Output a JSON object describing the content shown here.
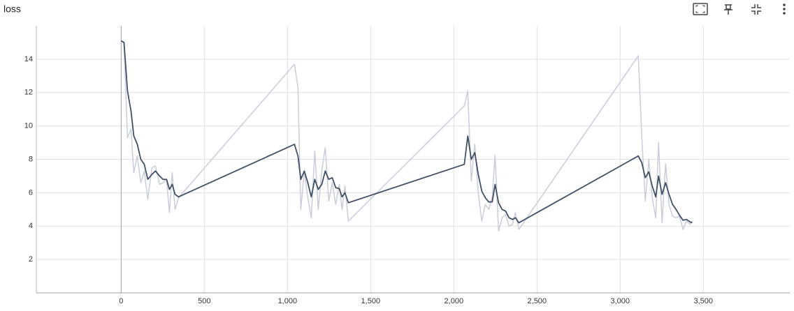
{
  "chart_data": {
    "type": "line",
    "title": "loss",
    "x": [
      0,
      17,
      38,
      59,
      76,
      97,
      118,
      139,
      160,
      185,
      206,
      231,
      252,
      273,
      290,
      307,
      324,
      345,
      1042,
      1063,
      1080,
      1101,
      1122,
      1143,
      1164,
      1185,
      1206,
      1227,
      1248,
      1269,
      1290,
      1311,
      1328,
      1345,
      1366,
      2063,
      2084,
      2105,
      2126,
      2147,
      2168,
      2189,
      2210,
      2231,
      2248,
      2269,
      2290,
      2311,
      2332,
      2353,
      2370,
      2391,
      3109,
      3130,
      3151,
      3172,
      3193,
      3214,
      3231,
      3252,
      3273,
      3294,
      3315,
      3336,
      3357,
      3378,
      3399,
      3420,
      3433
    ],
    "series": [
      {
        "color": "#c9cdd8",
        "values": [
          15.1,
          15.0,
          9.3,
          9.8,
          7.2,
          8.2,
          6.6,
          7.3,
          5.6,
          7.5,
          7.6,
          6.5,
          6.6,
          6.8,
          4.8,
          7.2,
          5.0,
          5.7,
          13.7,
          12.3,
          5.0,
          7.3,
          5.7,
          4.5,
          8.5,
          5.0,
          7.3,
          8.7,
          5.5,
          6.6,
          5.3,
          6.5,
          5.0,
          6.4,
          4.3,
          11.2,
          12.1,
          6.7,
          8.9,
          6.0,
          4.3,
          5.3,
          5.0,
          5.75,
          8.25,
          3.7,
          4.5,
          4.7,
          4.0,
          4.1,
          4.8,
          3.8,
          14.2,
          9.4,
          5.5,
          8.0,
          5.7,
          4.5,
          9.0,
          4.2,
          7.75,
          5.25,
          4.6,
          4.5,
          4.6,
          3.8,
          4.3,
          4.1,
          4.3
        ]
      },
      {
        "color": "#425066",
        "values": [
          15.1,
          15.0,
          12.1,
          10.9,
          9.4,
          8.9,
          8.0,
          7.7,
          6.8,
          7.1,
          7.3,
          7.0,
          6.8,
          6.8,
          6.2,
          6.5,
          5.9,
          5.75,
          8.9,
          8.2,
          6.8,
          7.3,
          6.6,
          5.75,
          6.8,
          6.2,
          6.5,
          7.3,
          6.8,
          6.9,
          6.3,
          6.25,
          5.75,
          6.0,
          5.4,
          7.7,
          9.4,
          8.0,
          8.4,
          7.1,
          6.1,
          5.7,
          5.45,
          5.45,
          6.5,
          5.4,
          5.0,
          4.9,
          4.5,
          4.4,
          4.5,
          4.2,
          8.2,
          7.8,
          6.9,
          7.25,
          6.4,
          5.75,
          7.0,
          5.9,
          6.6,
          5.9,
          5.3,
          5.0,
          4.65,
          4.35,
          4.4,
          4.25,
          4.2
        ]
      }
    ],
    "xlim": [
      -510,
      4020
    ],
    "xticks": [
      0,
      500,
      {
        "value": 1000,
        "label": "1,000"
      },
      {
        "value": 1500,
        "label": "1,500"
      },
      {
        "value": 2000,
        "label": "2,000"
      },
      {
        "value": 2500,
        "label": "2,500"
      },
      {
        "value": 3000,
        "label": "3,000"
      },
      {
        "value": 3500,
        "label": "3,500"
      }
    ],
    "ylim": [
      0,
      16
    ],
    "yticks": [
      2,
      4,
      6,
      8,
      10,
      12,
      14
    ],
    "grid": true
  }
}
